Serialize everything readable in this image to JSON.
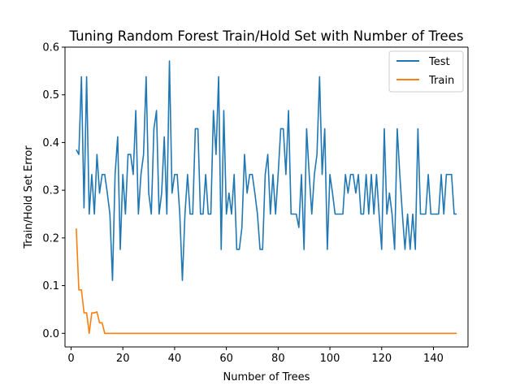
{
  "chart_data": {
    "type": "line",
    "title": "Tuning Random Forest Train/Hold Set with Number of Trees",
    "xlabel": "Number of Trees",
    "ylabel": "Train/Hold Set Error",
    "xlim": [
      -2.35,
      153.35
    ],
    "ylim": [
      -0.0285,
      0.6
    ],
    "xticks": [
      0,
      20,
      40,
      60,
      80,
      100,
      120,
      140
    ],
    "yticks": [
      0.0,
      0.1,
      0.2,
      0.3,
      0.4,
      0.5,
      0.6
    ],
    "xtick_labels": [
      "0",
      "20",
      "40",
      "60",
      "80",
      "100",
      "120",
      "140"
    ],
    "ytick_labels": [
      "0.0",
      "0.1",
      "0.2",
      "0.3",
      "0.4",
      "0.5",
      "0.6"
    ],
    "grid": false,
    "legend_position": "top-right",
    "series": [
      {
        "name": "Test",
        "color": "#1f77b4",
        "x": [
          2,
          3,
          4,
          5,
          6,
          7,
          8,
          9,
          10,
          11,
          12,
          13,
          14,
          15,
          16,
          17,
          18,
          19,
          20,
          21,
          22,
          23,
          24,
          25,
          26,
          27,
          28,
          29,
          30,
          31,
          32,
          33,
          34,
          35,
          36,
          37,
          38,
          39,
          40,
          41,
          42,
          43,
          44,
          45,
          46,
          47,
          48,
          49,
          50,
          51,
          52,
          53,
          54,
          55,
          56,
          57,
          58,
          59,
          60,
          61,
          62,
          63,
          64,
          65,
          66,
          67,
          68,
          69,
          70,
          71,
          72,
          73,
          74,
          75,
          76,
          77,
          78,
          79,
          80,
          81,
          82,
          83,
          84,
          85,
          86,
          87,
          88,
          89,
          90,
          91,
          92,
          93,
          94,
          95,
          96,
          97,
          98,
          99,
          100,
          101,
          102,
          103,
          104,
          105,
          106,
          107,
          108,
          109,
          110,
          111,
          112,
          113,
          114,
          115,
          116,
          117,
          118,
          119,
          120,
          121,
          122,
          123,
          124,
          125,
          126,
          127,
          128,
          129,
          130,
          131,
          132,
          133,
          134,
          135,
          136,
          137,
          138,
          139,
          140,
          141,
          142,
          143,
          144,
          145,
          146,
          147,
          148,
          149
        ],
        "values": [
          0.385,
          0.375,
          0.538,
          0.263,
          0.538,
          0.25,
          0.333,
          0.25,
          0.375,
          0.294,
          0.333,
          0.333,
          0.294,
          0.25,
          0.111,
          0.333,
          0.412,
          0.176,
          0.333,
          0.25,
          0.375,
          0.375,
          0.333,
          0.467,
          0.25,
          0.333,
          0.375,
          0.538,
          0.294,
          0.25,
          0.429,
          0.467,
          0.25,
          0.294,
          0.412,
          0.25,
          0.571,
          0.294,
          0.333,
          0.333,
          0.25,
          0.111,
          0.25,
          0.333,
          0.25,
          0.25,
          0.429,
          0.429,
          0.25,
          0.25,
          0.333,
          0.25,
          0.25,
          0.467,
          0.375,
          0.538,
          0.176,
          0.467,
          0.25,
          0.294,
          0.25,
          0.333,
          0.176,
          0.176,
          0.222,
          0.375,
          0.294,
          0.333,
          0.333,
          0.294,
          0.25,
          0.176,
          0.176,
          0.333,
          0.375,
          0.25,
          0.333,
          0.25,
          0.333,
          0.429,
          0.429,
          0.333,
          0.467,
          0.25,
          0.25,
          0.25,
          0.222,
          0.333,
          0.176,
          0.429,
          0.333,
          0.25,
          0.333,
          0.375,
          0.538,
          0.333,
          0.429,
          0.176,
          0.333,
          0.294,
          0.25,
          0.25,
          0.25,
          0.25,
          0.333,
          0.294,
          0.333,
          0.333,
          0.294,
          0.333,
          0.25,
          0.25,
          0.333,
          0.25,
          0.333,
          0.25,
          0.333,
          0.25,
          0.176,
          0.429,
          0.25,
          0.294,
          0.25,
          0.176,
          0.429,
          0.333,
          0.25,
          0.176,
          0.25,
          0.176,
          0.25,
          0.176,
          0.429,
          0.25,
          0.25,
          0.25,
          0.333,
          0.25,
          0.25,
          0.25,
          0.25,
          0.333,
          0.25,
          0.333,
          0.333,
          0.333,
          0.25,
          0.25
        ]
      },
      {
        "name": "Train",
        "color": "#ff7f0e",
        "x": [
          2,
          3,
          4,
          5,
          6,
          7,
          8,
          9,
          10,
          11,
          12,
          13,
          14,
          15,
          16,
          17,
          18,
          19,
          20,
          21,
          22,
          23,
          24,
          25,
          26,
          27,
          28,
          29,
          30,
          31,
          32,
          33,
          34,
          35,
          36,
          37,
          38,
          39,
          40,
          41,
          42,
          43,
          44,
          45,
          46,
          47,
          48,
          49,
          50,
          51,
          52,
          53,
          54,
          55,
          56,
          57,
          58,
          59,
          60,
          61,
          62,
          63,
          64,
          65,
          66,
          67,
          68,
          69,
          70,
          71,
          72,
          73,
          74,
          75,
          76,
          77,
          78,
          79,
          80,
          81,
          82,
          83,
          84,
          85,
          86,
          87,
          88,
          89,
          90,
          91,
          92,
          93,
          94,
          95,
          96,
          97,
          98,
          99,
          100,
          101,
          102,
          103,
          104,
          105,
          106,
          107,
          108,
          109,
          110,
          111,
          112,
          113,
          114,
          115,
          116,
          117,
          118,
          119,
          120,
          121,
          122,
          123,
          124,
          125,
          126,
          127,
          128,
          129,
          130,
          131,
          132,
          133,
          134,
          135,
          136,
          137,
          138,
          139,
          140,
          141,
          142,
          143,
          144,
          145,
          146,
          147,
          148,
          149
        ],
        "values": [
          0.22,
          0.091,
          0.091,
          0.043,
          0.043,
          0.0,
          0.043,
          0.043,
          0.045,
          0.022,
          0.022,
          0.0,
          0.0,
          0,
          0,
          0,
          0,
          0,
          0,
          0,
          0,
          0,
          0,
          0,
          0,
          0,
          0,
          0,
          0,
          0,
          0,
          0,
          0,
          0,
          0,
          0,
          0,
          0,
          0,
          0,
          0,
          0,
          0,
          0,
          0,
          0,
          0,
          0,
          0,
          0,
          0,
          0,
          0,
          0,
          0,
          0,
          0,
          0,
          0,
          0,
          0,
          0,
          0,
          0,
          0,
          0,
          0,
          0,
          0,
          0,
          0,
          0,
          0,
          0,
          0,
          0,
          0,
          0,
          0,
          0,
          0,
          0,
          0,
          0,
          0,
          0,
          0,
          0,
          0,
          0,
          0,
          0,
          0,
          0,
          0,
          0,
          0,
          0,
          0,
          0,
          0,
          0,
          0,
          0,
          0,
          0,
          0,
          0,
          0,
          0,
          0,
          0,
          0,
          0,
          0,
          0,
          0,
          0,
          0,
          0,
          0,
          0,
          0,
          0,
          0,
          0,
          0,
          0,
          0,
          0,
          0,
          0,
          0,
          0,
          0,
          0,
          0,
          0,
          0,
          0,
          0,
          0,
          0,
          0,
          0,
          0,
          0,
          0
        ]
      }
    ]
  }
}
